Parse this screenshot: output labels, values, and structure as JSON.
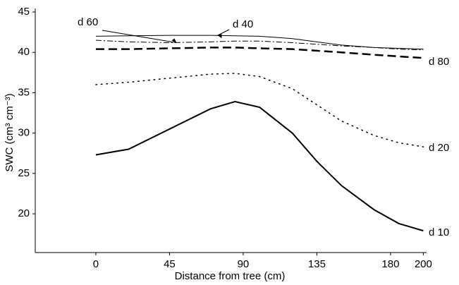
{
  "chart_data": {
    "type": "line",
    "x_label": "Distance from tree (cm)",
    "y_label": "SWC (cm³ cm⁻³)",
    "x": [
      0,
      20,
      45,
      70,
      85,
      100,
      120,
      135,
      150,
      170,
      185,
      200
    ],
    "series": [
      {
        "name": "d 10",
        "color": "#000000",
        "style": "solid",
        "linewidth": 2,
        "values": [
          27.3,
          28.0,
          30.5,
          33.0,
          33.9,
          33.2,
          30.0,
          26.5,
          23.5,
          20.5,
          18.8,
          17.9
        ]
      },
      {
        "name": "d 20",
        "color": "#000000",
        "style": "dotted",
        "linewidth": 1.5,
        "values": [
          36.0,
          36.3,
          36.8,
          37.3,
          37.4,
          37.0,
          35.5,
          33.5,
          31.5,
          29.7,
          28.8,
          28.3
        ]
      },
      {
        "name": "d 80",
        "color": "#000000",
        "style": "dashed",
        "linewidth": 2.5,
        "values": [
          40.4,
          40.4,
          40.5,
          40.6,
          40.6,
          40.5,
          40.4,
          40.2,
          40.0,
          39.7,
          39.5,
          39.3
        ]
      },
      {
        "name": "d 60",
        "color": "#000000",
        "style": "dashdot",
        "linewidth": 1,
        "values": [
          41.5,
          41.3,
          41.2,
          41.3,
          41.4,
          41.4,
          41.2,
          41.0,
          40.8,
          40.6,
          40.4,
          40.3
        ]
      },
      {
        "name": "d 40",
        "color": "#000000",
        "style": "solid",
        "linewidth": 1,
        "values": [
          42.0,
          42.05,
          42.1,
          42.1,
          42.05,
          42.0,
          41.7,
          41.3,
          40.9,
          40.6,
          40.5,
          40.4
        ]
      }
    ],
    "xlim": [
      -37,
      202
    ],
    "xticks": [
      0,
      45,
      90,
      135,
      180,
      200
    ],
    "ylim": [
      15.2,
      45
    ],
    "yticks": [
      20,
      25,
      30,
      35,
      40,
      45
    ],
    "grid": false
  }
}
